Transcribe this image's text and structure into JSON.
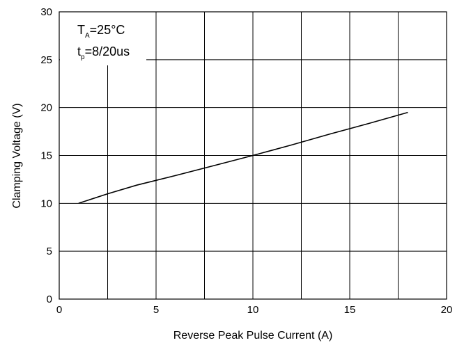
{
  "chart_data": {
    "type": "line",
    "title": "",
    "xlabel": "Reverse Peak Pulse Current (A)",
    "ylabel": "Clamping Voltage (V)",
    "xlim": [
      0,
      20
    ],
    "ylim": [
      0,
      30
    ],
    "x_ticks": [
      "0",
      "5",
      "10",
      "15",
      "20"
    ],
    "y_ticks": [
      "0",
      "5",
      "10",
      "15",
      "20",
      "25",
      "30"
    ],
    "grid": true,
    "series": [
      {
        "x": [
          1,
          2.5,
          4,
          6,
          8,
          10,
          12,
          14,
          16,
          18
        ],
        "y": [
          10,
          11,
          11.9,
          12.9,
          13.95,
          15,
          16.1,
          17.25,
          18.35,
          19.5
        ]
      }
    ],
    "annotations": {
      "temp_main": "T",
      "temp_sub": "A",
      "temp_value": "=25°C",
      "pulse_main": "t",
      "pulse_sub": "p",
      "pulse_value": "=8/20us"
    }
  }
}
